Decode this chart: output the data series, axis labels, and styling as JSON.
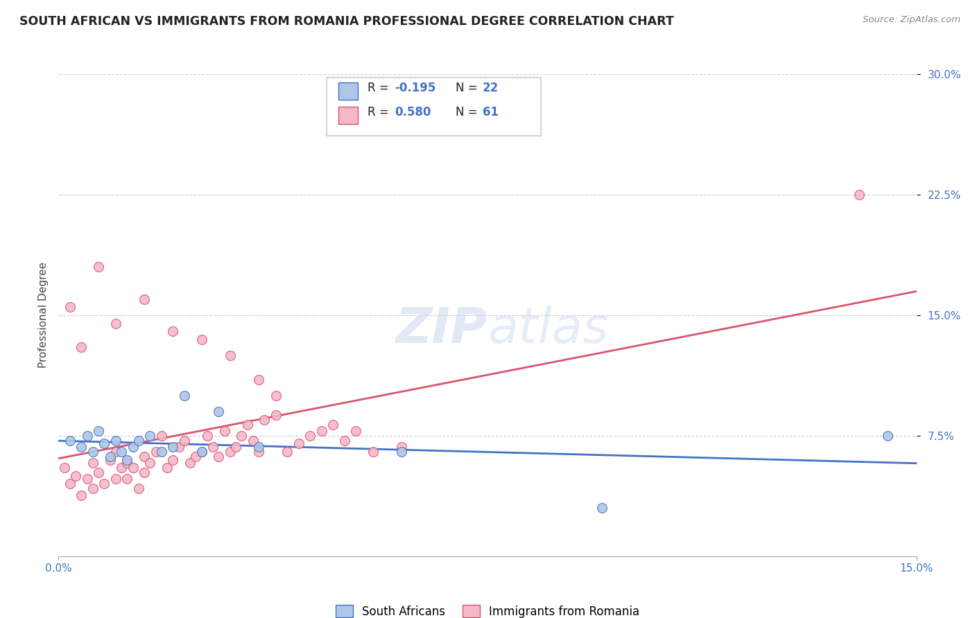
{
  "title": "SOUTH AFRICAN VS IMMIGRANTS FROM ROMANIA PROFESSIONAL DEGREE CORRELATION CHART",
  "source_text": "Source: ZipAtlas.com",
  "ylabel": "Professional Degree",
  "legend_bottom_labels": [
    "South Africans",
    "Immigrants from Romania"
  ],
  "xlim": [
    0.0,
    0.15
  ],
  "ylim": [
    0.0,
    0.3
  ],
  "ytick_positions": [
    0.075,
    0.15,
    0.225,
    0.3
  ],
  "r_blue": -0.195,
  "n_blue": 22,
  "r_pink": 0.58,
  "n_pink": 61,
  "blue_fill_color": "#aec6e8",
  "pink_fill_color": "#f4b8c8",
  "blue_edge_color": "#4472c4",
  "pink_edge_color": "#d9546e",
  "blue_line_color": "#4472c4",
  "pink_line_color": "#d9546e",
  "watermark_color": "#d0dff0",
  "blue_scatter_x": [
    0.002,
    0.004,
    0.005,
    0.006,
    0.007,
    0.008,
    0.009,
    0.01,
    0.011,
    0.012,
    0.013,
    0.014,
    0.016,
    0.018,
    0.02,
    0.022,
    0.025,
    0.028,
    0.035,
    0.06,
    0.095,
    0.145
  ],
  "blue_scatter_y": [
    0.072,
    0.068,
    0.075,
    0.065,
    0.078,
    0.07,
    0.062,
    0.072,
    0.065,
    0.06,
    0.068,
    0.072,
    0.075,
    0.065,
    0.068,
    0.1,
    0.065,
    0.09,
    0.068,
    0.065,
    0.03,
    0.075
  ],
  "pink_scatter_x": [
    0.001,
    0.002,
    0.003,
    0.004,
    0.005,
    0.006,
    0.006,
    0.007,
    0.008,
    0.009,
    0.01,
    0.01,
    0.011,
    0.012,
    0.012,
    0.013,
    0.014,
    0.015,
    0.015,
    0.016,
    0.017,
    0.018,
    0.019,
    0.02,
    0.021,
    0.022,
    0.023,
    0.024,
    0.025,
    0.026,
    0.027,
    0.028,
    0.029,
    0.03,
    0.031,
    0.032,
    0.033,
    0.034,
    0.035,
    0.036,
    0.038,
    0.04,
    0.042,
    0.044,
    0.046,
    0.048,
    0.05,
    0.052,
    0.055,
    0.06,
    0.002,
    0.004,
    0.007,
    0.01,
    0.015,
    0.02,
    0.025,
    0.03,
    0.035,
    0.038,
    0.14
  ],
  "pink_scatter_y": [
    0.055,
    0.045,
    0.05,
    0.038,
    0.048,
    0.042,
    0.058,
    0.052,
    0.045,
    0.06,
    0.048,
    0.065,
    0.055,
    0.048,
    0.058,
    0.055,
    0.042,
    0.052,
    0.062,
    0.058,
    0.065,
    0.075,
    0.055,
    0.06,
    0.068,
    0.072,
    0.058,
    0.062,
    0.065,
    0.075,
    0.068,
    0.062,
    0.078,
    0.065,
    0.068,
    0.075,
    0.082,
    0.072,
    0.065,
    0.085,
    0.088,
    0.065,
    0.07,
    0.075,
    0.078,
    0.082,
    0.072,
    0.078,
    0.065,
    0.068,
    0.155,
    0.13,
    0.18,
    0.145,
    0.16,
    0.14,
    0.135,
    0.125,
    0.11,
    0.1,
    0.225
  ]
}
